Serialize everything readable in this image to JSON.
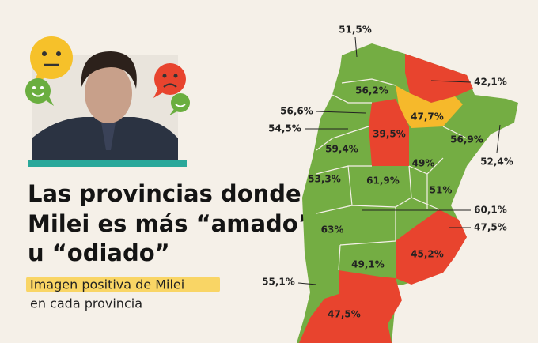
{
  "header": {
    "title_lines": [
      "Las provincias donde",
      "Milei es más “amado”",
      "u “odiado”"
    ],
    "subtitle_highlight": "Imagen positiva de Milei",
    "subtitle_rest": "en cada provincia"
  },
  "map": {
    "labels": [
      "51,5%",
      "56,2%",
      "42,1%",
      "47,7%",
      "56,6%",
      "39,5%",
      "54,5%",
      "56,9%",
      "52,4%",
      "59,4%",
      "49%",
      "53,3%",
      "61,9%",
      "51%",
      "60,1%",
      "47,5%",
      "63%",
      "45,2%",
      "49,1%",
      "55,1%",
      "47,5%"
    ]
  }
}
